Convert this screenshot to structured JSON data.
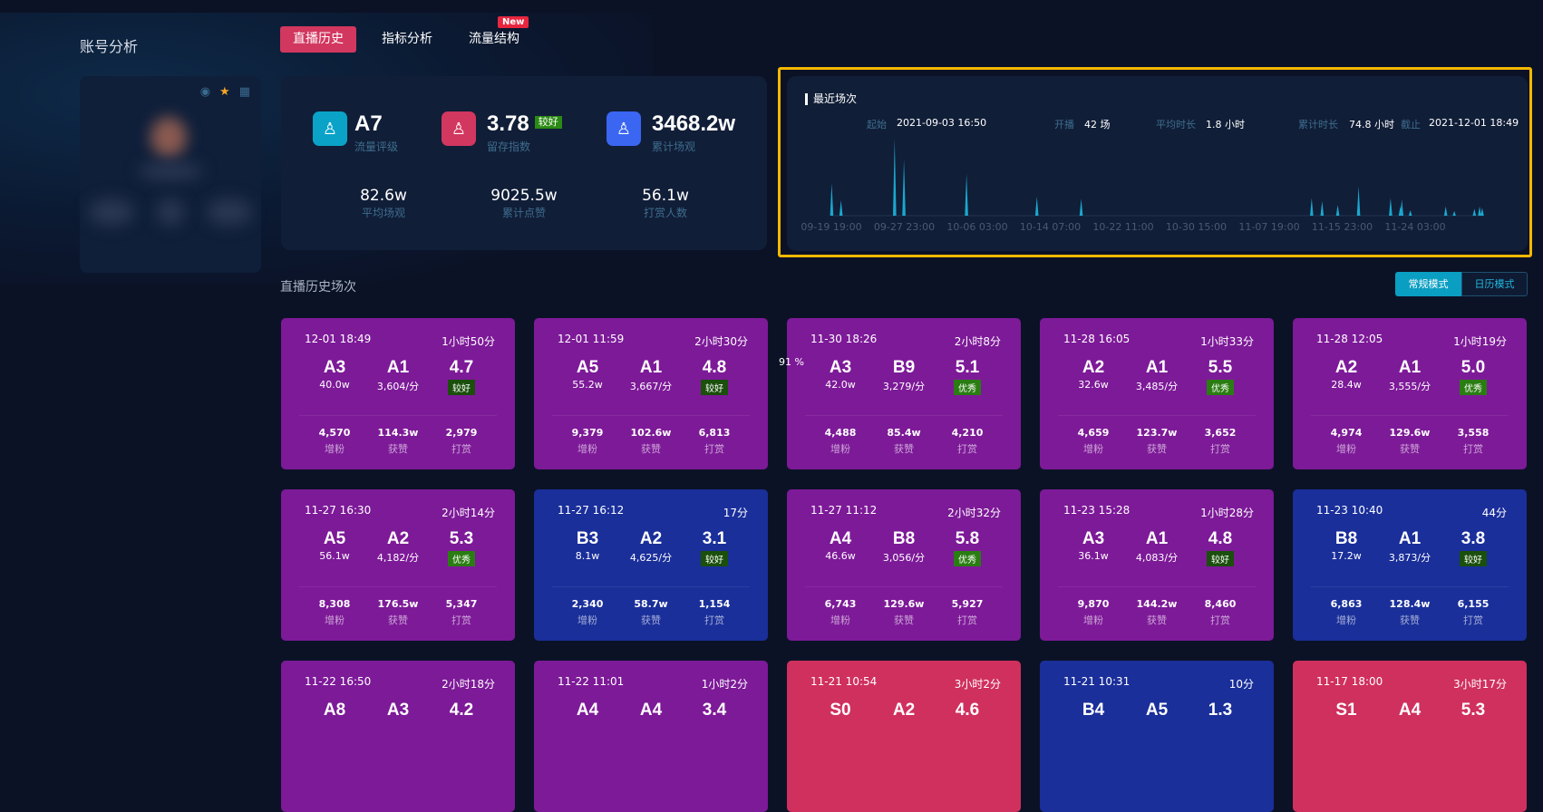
{
  "sidebar": {
    "title": "账号分析"
  },
  "tabs": [
    {
      "label": "直播历史",
      "active": true
    },
    {
      "label": "指标分析"
    },
    {
      "label": "流量结构",
      "badge": "New"
    }
  ],
  "stats": {
    "top": [
      {
        "value": "A7",
        "label": "流量评级",
        "icon": "user-rating-icon",
        "color": "#0aa3c7"
      },
      {
        "value": "3.78",
        "label": "留存指数",
        "grade": "较好",
        "icon": "user-retention-icon",
        "color": "#d2375f"
      },
      {
        "value": "3468.2w",
        "label": "累计场观",
        "icon": "users-icon",
        "color": "#3a66f2"
      }
    ],
    "bottom": [
      {
        "value": "82.6w",
        "label": "平均场观"
      },
      {
        "value": "9025.5w",
        "label": "累计点赞"
      },
      {
        "value": "56.1w",
        "label": "打赏人数"
      }
    ]
  },
  "recent": {
    "title": "最近场次",
    "start_label": "起始",
    "start": "2021-09-03 16:50",
    "count_label": "开播",
    "count": "42 场",
    "avg_label": "平均时长",
    "avg": "1.8 小时",
    "total_label": "累计时长",
    "total": "74.8 小时",
    "end_label": "截止",
    "end": "2021-12-01 18:49"
  },
  "chart_data": {
    "type": "area",
    "title": "最近场次",
    "x_unit": "hours since 09-19 19:00",
    "xlim": [
      0,
      1753
    ],
    "ylim": [
      0,
      100
    ],
    "x_ticks": [
      {
        "x": 0,
        "label": "09-19 19:00"
      },
      {
        "x": 196,
        "label": "09-27 23:00"
      },
      {
        "x": 392,
        "label": "10-06 03:00"
      },
      {
        "x": 588,
        "label": "10-14 07:00"
      },
      {
        "x": 784,
        "label": "10-22 11:00"
      },
      {
        "x": 980,
        "label": "10-30 15:00"
      },
      {
        "x": 1176,
        "label": "11-07 19:00"
      },
      {
        "x": 1372,
        "label": "11-15 23:00"
      },
      {
        "x": 1568,
        "label": "11-24 03:00"
      }
    ],
    "points": [
      {
        "x": 1,
        "y": 42
      },
      {
        "x": 26,
        "y": 20
      },
      {
        "x": 170,
        "y": 100
      },
      {
        "x": 195,
        "y": 73
      },
      {
        "x": 363,
        "y": 54
      },
      {
        "x": 552,
        "y": 25
      },
      {
        "x": 671,
        "y": 22
      },
      {
        "x": 1290,
        "y": 23
      },
      {
        "x": 1318,
        "y": 19
      },
      {
        "x": 1360,
        "y": 14
      },
      {
        "x": 1416,
        "y": 38
      },
      {
        "x": 1502,
        "y": 23
      },
      {
        "x": 1528,
        "y": 12
      },
      {
        "x": 1532,
        "y": 21
      },
      {
        "x": 1555,
        "y": 7
      },
      {
        "x": 1650,
        "y": 12
      },
      {
        "x": 1673,
        "y": 6
      },
      {
        "x": 1727,
        "y": 9
      },
      {
        "x": 1741,
        "y": 12
      },
      {
        "x": 1748,
        "y": 10
      }
    ],
    "color": "#1aa8cf"
  },
  "section": {
    "title": "直播历史场次",
    "overlay_pct": "91 %"
  },
  "modes": {
    "normal": "常规模式",
    "calendar": "日历模式"
  },
  "card_labels": {
    "fans": "增粉",
    "likes": "获赞",
    "gifts": "打赏"
  },
  "cards": [
    {
      "date": "12-01 18:49",
      "dur": "1小时50分",
      "g1": "A3",
      "v1": "40.0w",
      "g2": "A1",
      "v2": "3,604/分",
      "score": "4.7",
      "grade": "较好",
      "fans": "4,570",
      "likes": "114.3w",
      "gifts": "2,979",
      "color": "purple"
    },
    {
      "date": "12-01 11:59",
      "dur": "2小时30分",
      "g1": "A5",
      "v1": "55.2w",
      "g2": "A1",
      "v2": "3,667/分",
      "score": "4.8",
      "grade": "较好",
      "fans": "9,379",
      "likes": "102.6w",
      "gifts": "6,813",
      "color": "purple"
    },
    {
      "date": "11-30 18:26",
      "dur": "2小时8分",
      "g1": "A3",
      "v1": "42.0w",
      "g2": "B9",
      "v2": "3,279/分",
      "score": "5.1",
      "grade": "优秀",
      "fans": "4,488",
      "likes": "85.4w",
      "gifts": "4,210",
      "color": "purple"
    },
    {
      "date": "11-28 16:05",
      "dur": "1小时33分",
      "g1": "A2",
      "v1": "32.6w",
      "g2": "A1",
      "v2": "3,485/分",
      "score": "5.5",
      "grade": "优秀",
      "fans": "4,659",
      "likes": "123.7w",
      "gifts": "3,652",
      "color": "purple"
    },
    {
      "date": "11-28 12:05",
      "dur": "1小时19分",
      "g1": "A2",
      "v1": "28.4w",
      "g2": "A1",
      "v2": "3,555/分",
      "score": "5.0",
      "grade": "优秀",
      "fans": "4,974",
      "likes": "129.6w",
      "gifts": "3,558",
      "color": "purple"
    },
    {
      "date": "11-27 16:30",
      "dur": "2小时14分",
      "g1": "A5",
      "v1": "56.1w",
      "g2": "A2",
      "v2": "4,182/分",
      "score": "5.3",
      "grade": "优秀",
      "fans": "8,308",
      "likes": "176.5w",
      "gifts": "5,347",
      "color": "purple"
    },
    {
      "date": "11-27 16:12",
      "dur": "17分",
      "g1": "B3",
      "v1": "8.1w",
      "g2": "A2",
      "v2": "4,625/分",
      "score": "3.1",
      "grade": "较好",
      "fans": "2,340",
      "likes": "58.7w",
      "gifts": "1,154",
      "color": "blue"
    },
    {
      "date": "11-27 11:12",
      "dur": "2小时32分",
      "g1": "A4",
      "v1": "46.6w",
      "g2": "B8",
      "v2": "3,056/分",
      "score": "5.8",
      "grade": "优秀",
      "fans": "6,743",
      "likes": "129.6w",
      "gifts": "5,927",
      "color": "purple"
    },
    {
      "date": "11-23 15:28",
      "dur": "1小时28分",
      "g1": "A3",
      "v1": "36.1w",
      "g2": "A1",
      "v2": "4,083/分",
      "score": "4.8",
      "grade": "较好",
      "fans": "9,870",
      "likes": "144.2w",
      "gifts": "8,460",
      "color": "purple"
    },
    {
      "date": "11-23 10:40",
      "dur": "44分",
      "g1": "B8",
      "v1": "17.2w",
      "g2": "A1",
      "v2": "3,873/分",
      "score": "3.8",
      "grade": "较好",
      "fans": "6,863",
      "likes": "128.4w",
      "gifts": "6,155",
      "color": "blue"
    },
    {
      "date": "11-22 16:50",
      "dur": "2小时18分",
      "g1": "A8",
      "g2": "A3",
      "score": "4.2",
      "color": "purple"
    },
    {
      "date": "11-22 11:01",
      "dur": "1小时2分",
      "g1": "A4",
      "g2": "A4",
      "score": "3.4",
      "color": "purple"
    },
    {
      "date": "11-21 10:54",
      "dur": "3小时2分",
      "g1": "S0",
      "g2": "A2",
      "score": "4.6",
      "color": "red"
    },
    {
      "date": "11-21 10:31",
      "dur": "10分",
      "g1": "B4",
      "g2": "A5",
      "score": "1.3",
      "color": "blue"
    },
    {
      "date": "11-17 18:00",
      "dur": "3小时17分",
      "g1": "S1",
      "g2": "A4",
      "score": "5.3",
      "color": "red"
    }
  ]
}
